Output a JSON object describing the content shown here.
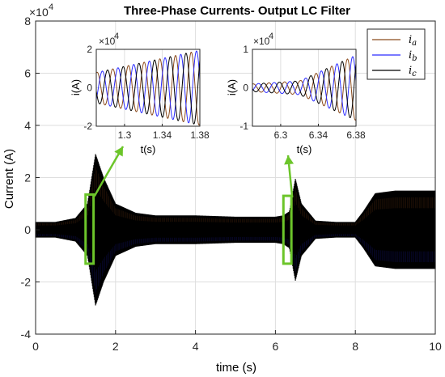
{
  "colors": {
    "ia": "#8b4a1c",
    "ib": "#2b2bff",
    "ic": "#000000",
    "callout": "#6cc52a",
    "grid": "#dedede",
    "axis": "#262626"
  },
  "chart_data": [
    {
      "type": "line",
      "title": "Three-Phase Currents- Output LC Filter",
      "xlabel": "time (s)",
      "ylabel": "Current (A)",
      "y_exponent": "×10",
      "y_exponent_power": "4",
      "xlim": [
        0,
        10
      ],
      "ylim": [
        -4,
        8
      ],
      "xticks": [
        "0",
        "2",
        "4",
        "6",
        "8",
        "10"
      ],
      "yticks": [
        "-4",
        "-2",
        "0",
        "2",
        "4",
        "6",
        "8"
      ],
      "grid": true,
      "legend": {
        "placement": "top-right",
        "entries": [
          {
            "label": "i",
            "sub": "a",
            "color_key": "ia"
          },
          {
            "label": "i",
            "sub": "b",
            "color_key": "ib"
          },
          {
            "label": "i",
            "sub": "c",
            "color_key": "ic"
          }
        ]
      },
      "envelope": {
        "description": "amplitude envelope of the three overlapping phase currents",
        "t": [
          0,
          0.5,
          1.0,
          1.3,
          1.5,
          1.7,
          2.0,
          2.5,
          3.0,
          4.0,
          5.0,
          6.0,
          6.2,
          6.35,
          6.5,
          6.65,
          7.0,
          7.5,
          8.0,
          8.2,
          8.5,
          9.0,
          10.0
        ],
        "amp": [
          0.3,
          0.3,
          0.45,
          1.0,
          2.9,
          2.0,
          1.0,
          0.65,
          0.55,
          0.55,
          0.5,
          0.5,
          0.55,
          0.7,
          1.95,
          1.0,
          0.35,
          0.3,
          0.3,
          0.7,
          1.4,
          1.5,
          1.5
        ]
      },
      "zoom_boxes": [
        {
          "x": [
            1.25,
            1.45
          ],
          "y": [
            -1.3,
            1.35
          ]
        },
        {
          "x": [
            6.2,
            6.4
          ],
          "y": [
            -1.3,
            1.3
          ]
        }
      ]
    },
    {
      "type": "line",
      "xlabel": "t(s)",
      "ylabel": "i(A)",
      "y_exponent": "×10",
      "y_exponent_power": "4",
      "xlim": [
        1.27,
        1.38
      ],
      "ylim": [
        -2,
        2
      ],
      "xticks": [
        "1.3",
        "1.34",
        "1.38"
      ],
      "xtick_values": [
        1.3,
        1.34,
        1.38
      ],
      "yticks": [
        "-2",
        "0",
        "2"
      ],
      "grid": true,
      "frequency_hz": 60,
      "amplitude": {
        "t": [
          1.27,
          1.38
        ],
        "amp": [
          0.8,
          1.95
        ]
      }
    },
    {
      "type": "line",
      "xlabel": "t(s)",
      "ylabel": "i(A)",
      "y_exponent": "×10",
      "y_exponent_power": "4",
      "xlim": [
        6.27,
        6.38
      ],
      "ylim": [
        -1,
        1
      ],
      "xticks": [
        "6.3",
        "6.34",
        "6.38"
      ],
      "xtick_values": [
        6.3,
        6.34,
        6.38
      ],
      "yticks": [
        "-1",
        "0",
        "1"
      ],
      "grid": true,
      "frequency_hz": 60,
      "amplitude": {
        "t": [
          6.27,
          6.32,
          6.38
        ],
        "amp": [
          0.1,
          0.18,
          0.85
        ]
      }
    }
  ]
}
